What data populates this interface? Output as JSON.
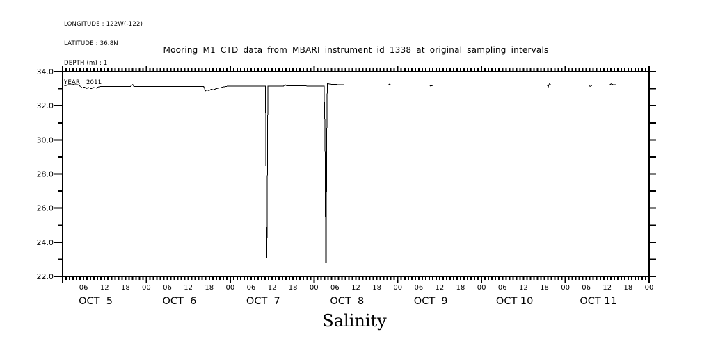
{
  "meta": {
    "longitude": "LONGITUDE : 122W(-122)",
    "latitude": "LATITUDE : 36.8N",
    "depth": "DEPTH (m) : 1",
    "year": "YEAR : 2011"
  },
  "title": "Mooring M1 CTD data from MBARI instrument id 1338 at original sampling intervals",
  "xlabel": "Salinity",
  "colors": {
    "foreground": "#000000",
    "background": "#ffffff",
    "line": "#000000"
  },
  "chart_data": {
    "type": "line",
    "title": "Mooring M1 CTD data from MBARI instrument id 1338 at original sampling intervals",
    "xlabel": "Salinity",
    "ylabel": "",
    "grid": false,
    "legend": null,
    "ylim": [
      22.0,
      34.0
    ],
    "yticks": {
      "major_values": [
        34.0,
        32.0,
        30.0,
        28.0,
        26.0,
        24.0,
        22.0
      ],
      "major_labels": [
        "34.0",
        "32.0",
        "30.0",
        "28.0",
        "26.0",
        "24.0",
        "22.0"
      ],
      "minor_step": 1.0,
      "major_step": 2.0
    },
    "x_axis": {
      "unit": "hours since OCT 5 2011 00:00",
      "range_hours": [
        0,
        168
      ],
      "minor_tick_every_hours": 1,
      "labeled_tick_every_hours": 6,
      "hour_label_cycle": [
        "06",
        "12",
        "18",
        "00"
      ],
      "day_labels": [
        "OCT  5",
        "OCT  6",
        "OCT  7",
        "OCT  8",
        "OCT  9",
        "OCT 10",
        "OCT 11"
      ],
      "year_shown_in_meta": "2011"
    },
    "series": [
      {
        "name": "Salinity at Mooring M1, instrument id 1338, depth 1 m",
        "color": "#000000",
        "points": [
          [
            0,
            33.22
          ],
          [
            0.8,
            33.17
          ],
          [
            1.6,
            33.22
          ],
          [
            3,
            33.24
          ],
          [
            4.4,
            33.22
          ],
          [
            5,
            33.15
          ],
          [
            5.6,
            33.04
          ],
          [
            6.2,
            33.09
          ],
          [
            6.9,
            33.01
          ],
          [
            7.5,
            33.06
          ],
          [
            8.2,
            33.0
          ],
          [
            8.9,
            33.06
          ],
          [
            9.6,
            33.03
          ],
          [
            10.3,
            33.1
          ],
          [
            11,
            33.12
          ],
          [
            16,
            33.12
          ],
          [
            19.4,
            33.12
          ],
          [
            19.8,
            33.2
          ],
          [
            20.1,
            33.24
          ],
          [
            20.4,
            33.12
          ],
          [
            26,
            33.12
          ],
          [
            33,
            33.13
          ],
          [
            40.4,
            33.13
          ],
          [
            40.9,
            32.87
          ],
          [
            41.4,
            32.93
          ],
          [
            41.9,
            32.88
          ],
          [
            42.5,
            32.96
          ],
          [
            43.2,
            32.93
          ],
          [
            44,
            33.0
          ],
          [
            45,
            33.04
          ],
          [
            46,
            33.1
          ],
          [
            47.5,
            33.15
          ],
          [
            52,
            33.15
          ],
          [
            58.1,
            33.15
          ],
          [
            58.25,
            28.2
          ],
          [
            58.4,
            23.1
          ],
          [
            58.52,
            23.1
          ],
          [
            58.65,
            28.2
          ],
          [
            58.8,
            33.15
          ],
          [
            61,
            33.14
          ],
          [
            63.3,
            33.14
          ],
          [
            63.7,
            33.24
          ],
          [
            64.2,
            33.16
          ],
          [
            68,
            33.16
          ],
          [
            74.9,
            33.15
          ],
          [
            75.15,
            30.5
          ],
          [
            75.35,
            22.82
          ],
          [
            75.5,
            22.82
          ],
          [
            75.65,
            30.0
          ],
          [
            75.8,
            33.3
          ],
          [
            76.6,
            33.26
          ],
          [
            80,
            33.22
          ],
          [
            86,
            33.2
          ],
          [
            93.2,
            33.2
          ],
          [
            93.6,
            33.26
          ],
          [
            94.1,
            33.2
          ],
          [
            100,
            33.2
          ],
          [
            105.1,
            33.2
          ],
          [
            105.5,
            33.14
          ],
          [
            106.1,
            33.2
          ],
          [
            114,
            33.2
          ],
          [
            124,
            33.2
          ],
          [
            134,
            33.2
          ],
          [
            138.8,
            33.2
          ],
          [
            139.1,
            33.1
          ],
          [
            139.4,
            33.28
          ],
          [
            140,
            33.2
          ],
          [
            146,
            33.2
          ],
          [
            150.7,
            33.2
          ],
          [
            151.1,
            33.13
          ],
          [
            151.7,
            33.2
          ],
          [
            156.6,
            33.2
          ],
          [
            157.1,
            33.28
          ],
          [
            157.9,
            33.22
          ],
          [
            163,
            33.2
          ],
          [
            168,
            33.2
          ]
        ]
      }
    ]
  }
}
